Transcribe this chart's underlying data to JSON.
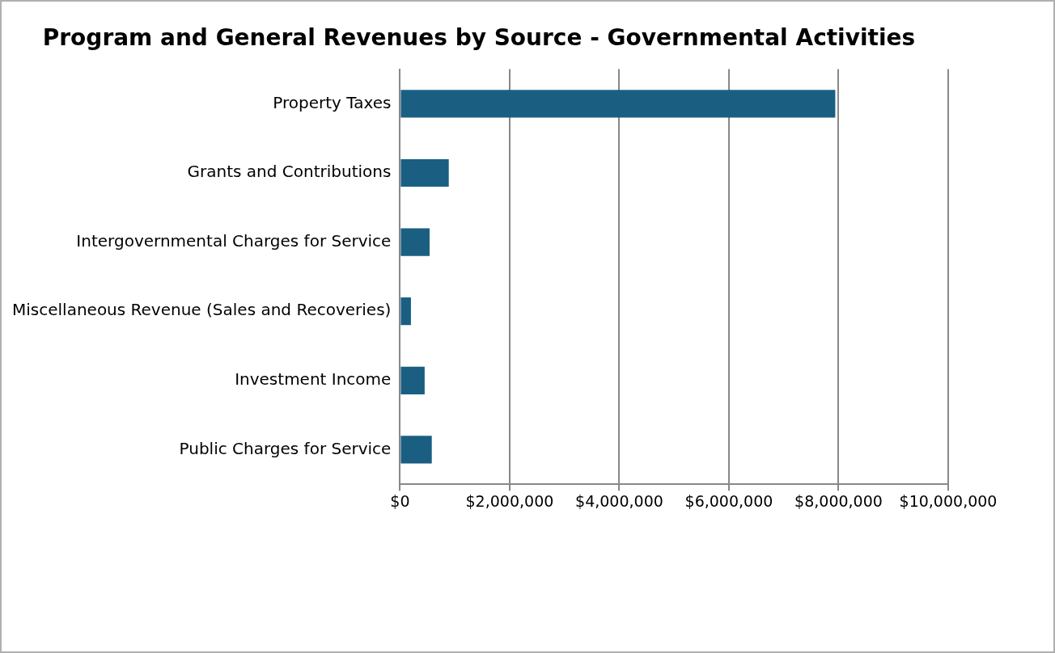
{
  "chart_data": {
    "type": "bar",
    "orientation": "horizontal",
    "title": "Program and General Revenues by Source - Governmental Activities",
    "categories": [
      "Property Taxes",
      "Grants and Contributions",
      "Intergovernmental Charges for Service",
      "Miscellaneous Revenue (Sales and Recoveries)",
      "Investment Income",
      "Public Charges for Service"
    ],
    "values": [
      7940000,
      890000,
      540000,
      200000,
      450000,
      580000
    ],
    "color": "#1a5f82",
    "xlim": [
      0,
      10000000
    ],
    "xticks": [
      {
        "value": 0,
        "label": "$0"
      },
      {
        "value": 2000000,
        "label": "$2,000,000"
      },
      {
        "value": 4000000,
        "label": "$4,000,000"
      },
      {
        "value": 6000000,
        "label": "$6,000,000"
      },
      {
        "value": 8000000,
        "label": "$8,000,000"
      },
      {
        "value": 10000000,
        "label": "$10,000,000"
      }
    ],
    "grid": "x",
    "legend": false
  }
}
